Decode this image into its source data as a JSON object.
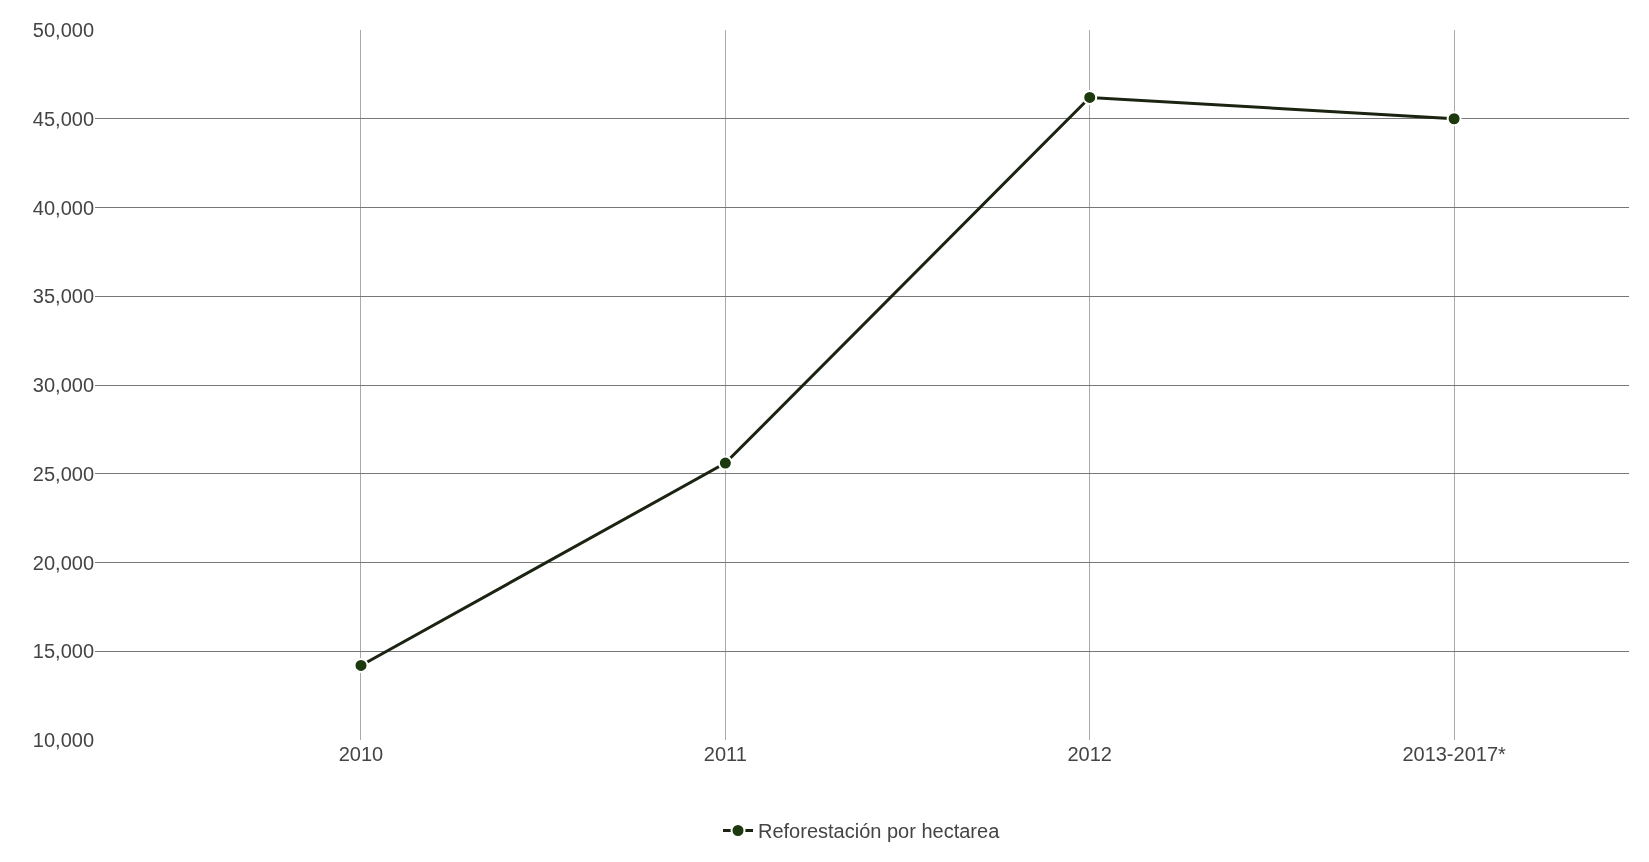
{
  "chart_data": {
    "type": "line",
    "categories": [
      "2010",
      "2011",
      "2012",
      "2013-2017*"
    ],
    "series": [
      {
        "name": "Reforestación por hectarea",
        "color": "#1c3a0e",
        "values": [
          14200,
          25600,
          46200,
          45000
        ]
      }
    ],
    "ylim": [
      10000,
      50000
    ],
    "yticks": [
      {
        "value": 10000,
        "label": "10,000"
      },
      {
        "value": 15000,
        "label": "15,000"
      },
      {
        "value": 20000,
        "label": "20,000"
      },
      {
        "value": 25000,
        "label": "25,000"
      },
      {
        "value": 30000,
        "label": "30,000"
      },
      {
        "value": 35000,
        "label": "35,000"
      },
      {
        "value": 40000,
        "label": "40,000"
      },
      {
        "value": 45000,
        "label": "45,000"
      },
      {
        "value": 50000,
        "label": "50,000"
      }
    ],
    "grid": true,
    "legend": "bottom",
    "marker": "circle",
    "line_style": "solid"
  }
}
